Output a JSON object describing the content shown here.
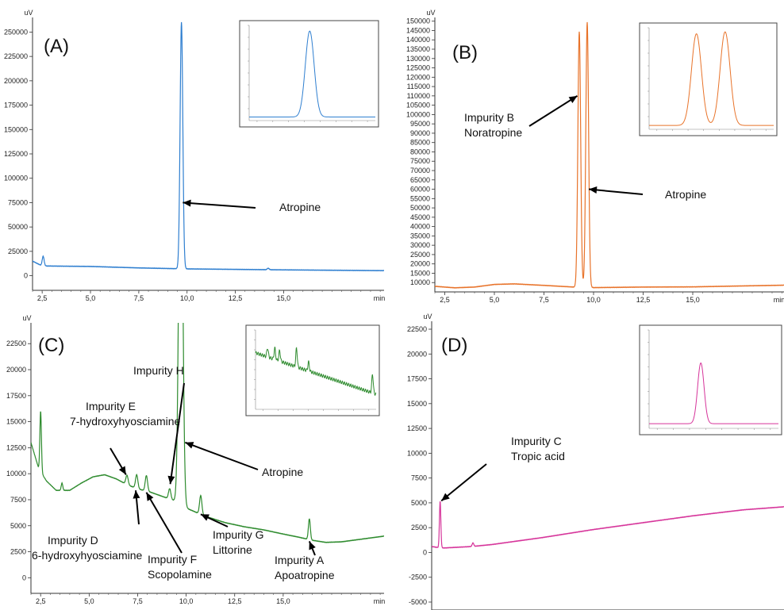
{
  "chart_data": [
    {
      "panel_label": "(A)",
      "type": "line",
      "y_unit": "uV",
      "x_unit": "min",
      "xlim": [
        2.0,
        20.2
      ],
      "ylim": [
        -15000,
        265000
      ],
      "x_ticks": [
        "2,5",
        "5,0",
        "7,5",
        "10,0",
        "12,5",
        "15,0"
      ],
      "x_tick_values": [
        2.5,
        5.0,
        7.5,
        10.0,
        12.5,
        15.0
      ],
      "y_ticks": [
        "0",
        "25000",
        "50000",
        "75000",
        "100000",
        "125000",
        "150000",
        "175000",
        "200000",
        "225000",
        "250000"
      ],
      "y_tick_values": [
        0,
        25000,
        50000,
        75000,
        100000,
        125000,
        150000,
        175000,
        200000,
        225000,
        250000
      ],
      "color": "#2f7fd0",
      "baseline": [
        [
          2.0,
          15000
        ],
        [
          2.3,
          12000
        ],
        [
          2.5,
          10000
        ],
        [
          5.0,
          9500
        ],
        [
          7.5,
          8000
        ],
        [
          10.0,
          7000
        ],
        [
          12.5,
          6500
        ],
        [
          15.0,
          6000
        ],
        [
          17.5,
          5600
        ],
        [
          20.2,
          5200
        ]
      ],
      "peaks": [
        {
          "x": 2.55,
          "height": 10000,
          "width": 0.05
        },
        {
          "x": 9.71,
          "height": 253000,
          "width": 0.07
        },
        {
          "x": 14.2,
          "height": 1500,
          "width": 0.05
        }
      ],
      "annotations": [
        {
          "text": [
            "Atropine"
          ],
          "arrow_to": [
            9.78,
            75000
          ]
        }
      ],
      "inset": {
        "peaks_count": 1
      }
    },
    {
      "panel_label": "(B)",
      "type": "line",
      "y_unit": "uV",
      "x_unit": "min",
      "xlim": [
        2.0,
        19.6
      ],
      "ylim": [
        5000,
        152000
      ],
      "x_ticks": [
        "2,5",
        "5,0",
        "7,5",
        "10,0",
        "12,5",
        "15,0"
      ],
      "x_tick_values": [
        2.5,
        5.0,
        7.5,
        10.0,
        12.5,
        15.0
      ],
      "y_ticks": [
        "10000",
        "15000",
        "20000",
        "25000",
        "30000",
        "35000",
        "40000",
        "45000",
        "50000",
        "55000",
        "60000",
        "65000",
        "70000",
        "75000",
        "80000",
        "85000",
        "90000",
        "95000",
        "100000",
        "105000",
        "110000",
        "115000",
        "120000",
        "125000",
        "130000",
        "135000",
        "140000",
        "145000",
        "150000"
      ],
      "y_tick_values": [
        10000,
        15000,
        20000,
        25000,
        30000,
        35000,
        40000,
        45000,
        50000,
        55000,
        60000,
        65000,
        70000,
        75000,
        80000,
        85000,
        90000,
        95000,
        100000,
        105000,
        110000,
        115000,
        120000,
        125000,
        130000,
        135000,
        140000,
        145000,
        150000
      ],
      "color": "#e8732a",
      "baseline": [
        [
          2.0,
          8000
        ],
        [
          3.0,
          7200
        ],
        [
          4.0,
          7600
        ],
        [
          5.0,
          9000
        ],
        [
          6.0,
          9300
        ],
        [
          7.5,
          8500
        ],
        [
          9.0,
          7600
        ],
        [
          10.0,
          7300
        ],
        [
          12.5,
          7600
        ],
        [
          15.0,
          7700
        ],
        [
          17.5,
          8200
        ],
        [
          19.6,
          8600
        ]
      ],
      "peaks": [
        {
          "x": 9.28,
          "height": 137000,
          "width": 0.07
        },
        {
          "x": 9.68,
          "height": 142000,
          "width": 0.07
        }
      ],
      "annotations": [
        {
          "text": [
            "Impurity B",
            "Noratropine"
          ],
          "arrow_to": [
            9.18,
            110000
          ]
        },
        {
          "text": [
            "Atropine"
          ],
          "arrow_to": [
            9.76,
            60000
          ]
        }
      ],
      "inset": {
        "peaks_count": 2
      }
    },
    {
      "panel_label": "(C)",
      "type": "line",
      "y_unit": "uV",
      "x_unit": "min",
      "xlim": [
        2.0,
        20.2
      ],
      "ylim": [
        -1500,
        24500
      ],
      "x_ticks": [
        "2,5",
        "5,0",
        "7,5",
        "10,0",
        "12,5",
        "15,0"
      ],
      "x_tick_values": [
        2.5,
        5.0,
        7.5,
        10.0,
        12.5,
        15.0
      ],
      "y_ticks": [
        "0",
        "2500",
        "5000",
        "7500",
        "10000",
        "12500",
        "15000",
        "17500",
        "20000",
        "22500"
      ],
      "y_tick_values": [
        0,
        2500,
        5000,
        7500,
        10000,
        12500,
        15000,
        17500,
        20000,
        22500
      ],
      "color": "#2e8b2e",
      "baseline": [
        [
          2.0,
          13000
        ],
        [
          2.4,
          10500
        ],
        [
          2.8,
          9300
        ],
        [
          3.3,
          8400
        ],
        [
          4.0,
          8400
        ],
        [
          4.6,
          9100
        ],
        [
          5.2,
          9700
        ],
        [
          5.8,
          9900
        ],
        [
          6.4,
          9500
        ],
        [
          7.0,
          8900
        ],
        [
          7.6,
          8500
        ],
        [
          8.2,
          8200
        ],
        [
          8.8,
          7800
        ],
        [
          9.4,
          7400
        ],
        [
          10.0,
          6700
        ],
        [
          11.0,
          5900
        ],
        [
          12.0,
          5300
        ],
        [
          13.0,
          4900
        ],
        [
          14.0,
          4600
        ],
        [
          15.0,
          4200
        ],
        [
          15.8,
          3900
        ],
        [
          16.5,
          3600
        ],
        [
          17.2,
          3400
        ],
        [
          18.0,
          3450
        ],
        [
          19.0,
          3700
        ],
        [
          20.2,
          4000
        ]
      ],
      "peaks": [
        {
          "x": 2.5,
          "height": 5800,
          "width": 0.04
        },
        {
          "x": 3.6,
          "height": 700,
          "width": 0.04
        },
        {
          "x": 6.95,
          "height": 900,
          "width": 0.06
        },
        {
          "x": 7.45,
          "height": 1300,
          "width": 0.06
        },
        {
          "x": 7.95,
          "height": 1500,
          "width": 0.06
        },
        {
          "x": 9.15,
          "height": 1000,
          "width": 0.06
        },
        {
          "x": 9.72,
          "height": 40000,
          "width": 0.1
        },
        {
          "x": 10.75,
          "height": 1800,
          "width": 0.06
        },
        {
          "x": 16.35,
          "height": 2000,
          "width": 0.05
        }
      ],
      "annotations": [
        {
          "text": [
            "Impurity E",
            "7-hydroxyhyosciamine"
          ],
          "arrow_to": [
            6.9,
            9900
          ]
        },
        {
          "text": [
            "Impurity H"
          ],
          "arrow_to": [
            9.18,
            9000
          ]
        },
        {
          "text": [
            "Atropine"
          ],
          "arrow_to": [
            9.95,
            13000
          ]
        },
        {
          "text": [
            "Impurity D",
            "6-hydroxyhyosciamine"
          ],
          "arrow_to": [
            7.4,
            8400
          ]
        },
        {
          "text": [
            "Impurity F",
            "Scopolamine"
          ],
          "arrow_to": [
            7.95,
            8200
          ]
        },
        {
          "text": [
            "Impurity G",
            "Littorine"
          ],
          "arrow_to": [
            10.75,
            6100
          ]
        },
        {
          "text": [
            "Impurity A",
            "Apoatropine"
          ],
          "arrow_to": [
            16.35,
            3500
          ]
        }
      ],
      "inset": {
        "peaks_count": 6
      }
    },
    {
      "panel_label": "(D)",
      "type": "line",
      "y_unit": "uV",
      "x_unit": "min",
      "xlim": [
        2.0,
        19.5
      ],
      "ylim": [
        -5800,
        23300
      ],
      "x_ticks": [
        "2,5",
        "5,0",
        "7,5",
        "10,0",
        "12,5",
        "15,0"
      ],
      "x_tick_values": [
        2.5,
        5.0,
        7.5,
        10.0,
        12.5,
        15.0
      ],
      "y_ticks": [
        "-5000",
        "-2500",
        "0",
        "2500",
        "5000",
        "7500",
        "10000",
        "12500",
        "15000",
        "17500",
        "20000",
        "22500"
      ],
      "y_tick_values": [
        -5000,
        -2500,
        0,
        2500,
        5000,
        7500,
        10000,
        12500,
        15000,
        17500,
        20000,
        22500
      ],
      "color": "#d6349a",
      "baseline": [
        [
          2.0,
          600
        ],
        [
          2.3,
          500
        ],
        [
          2.6,
          450
        ],
        [
          4.0,
          600
        ],
        [
          5.0,
          800
        ],
        [
          7.5,
          1500
        ],
        [
          10.0,
          2300
        ],
        [
          12.5,
          3000
        ],
        [
          15.0,
          3700
        ],
        [
          17.5,
          4300
        ],
        [
          19.5,
          4600
        ]
      ],
      "peaks": [
        {
          "x": 2.42,
          "height": 4700,
          "width": 0.035
        },
        {
          "x": 4.05,
          "height": 350,
          "width": 0.04
        }
      ],
      "annotations": [
        {
          "text": [
            "Impurity C",
            "Tropic acid"
          ],
          "arrow_to": [
            2.48,
            5200
          ]
        }
      ],
      "inset": {
        "peaks_count": 1
      }
    }
  ]
}
